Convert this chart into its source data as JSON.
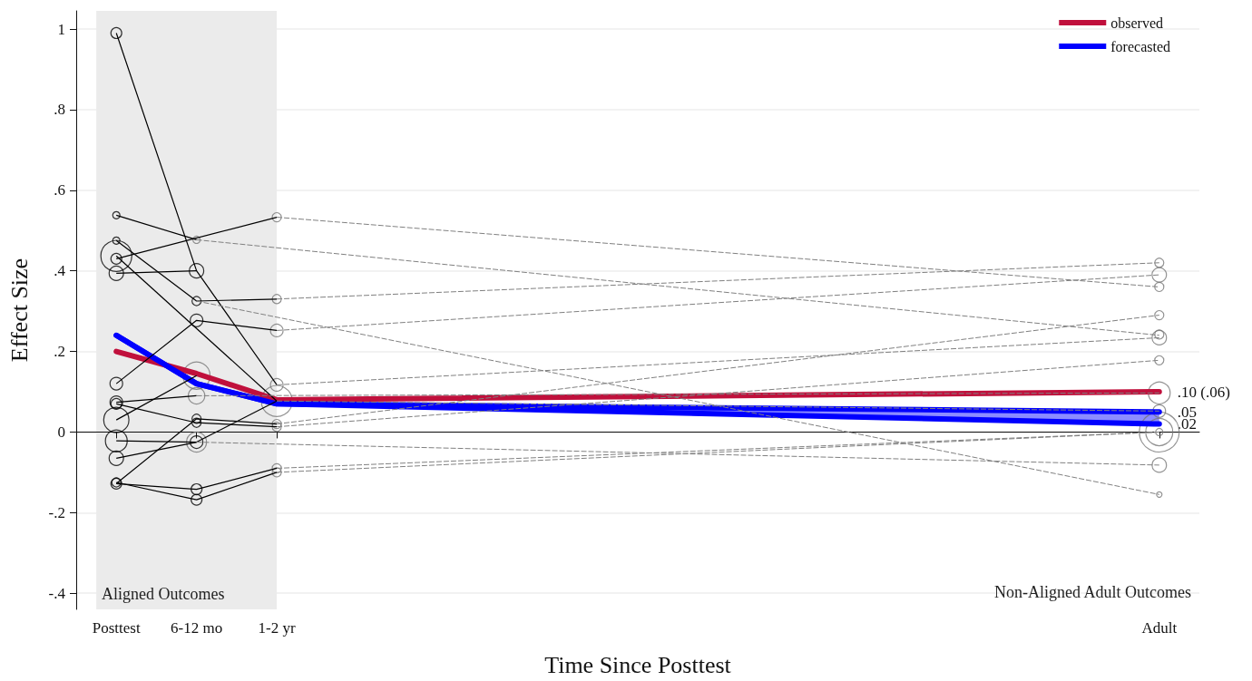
{
  "chart_data": {
    "type": "line",
    "xlabel": "Time Since Posttest",
    "ylabel": "Effect Size",
    "categories": [
      "Posttest",
      "6-12 mo",
      "1-2 yr",
      null,
      null,
      null,
      null,
      null,
      null,
      null,
      null,
      null,
      null,
      "Adult"
    ],
    "ylim": [
      -0.44,
      1.045
    ],
    "yticks": [
      {
        "value": -0.4,
        "label": "-.4"
      },
      {
        "value": -0.2,
        "label": "-.2"
      },
      {
        "value": 0,
        "label": "0"
      },
      {
        "value": 0.2,
        "label": ".2"
      },
      {
        "value": 0.4,
        "label": ".4"
      },
      {
        "value": 0.6,
        "label": ".6"
      },
      {
        "value": 0.8,
        "label": ".8"
      },
      {
        "value": 1,
        "label": "1"
      }
    ],
    "grid": "y",
    "legend": "top right",
    "bands": [
      {
        "axis": "x",
        "from": "Posttest",
        "to": "1-2 yr",
        "label": "Aligned Outcomes",
        "color": "#ebebeb"
      }
    ],
    "annotations": [
      "Non-Aligned Adult Outcomes",
      {
        "text": ".10 (.06)",
        "x": "Adult",
        "y": 0.1
      },
      {
        "text": ".05",
        "x": "Adult",
        "y": 0.05
      },
      {
        "text": ".02",
        "x": "Adult",
        "y": 0.02
      }
    ],
    "series": [
      {
        "color": "#000000",
        "line_style": "solid",
        "x": [
          "Posttest",
          "6-12 mo",
          "1-2 yr"
        ],
        "values": [
          0.99,
          0.4,
          0.117
        ]
      },
      {
        "color": "#000000",
        "line_style": "solid",
        "x": [
          "Posttest",
          "6-12 mo"
        ],
        "values": [
          0.394,
          0.4
        ]
      },
      {
        "color": "#000000",
        "line_style": "solid",
        "x": [
          "Posttest",
          "6-12 mo"
        ],
        "values": [
          0.538,
          0.477
        ]
      },
      {
        "color": "#000000",
        "line_style": "solid",
        "x": [
          "Posttest",
          "1-2 yr"
        ],
        "values": [
          0.43,
          0.533
        ]
      },
      {
        "color": "#000000",
        "line_style": "solid",
        "x": [
          "Posttest",
          "6-12 mo",
          "1-2 yr"
        ],
        "values": [
          0.475,
          0.325,
          0.33
        ]
      },
      {
        "color": "#000000",
        "line_style": "solid",
        "x": [
          "Posttest",
          "1-2 yr"
        ],
        "values": [
          0.437,
          0.077
        ]
      },
      {
        "color": "#000000",
        "line_style": "solid",
        "x": [
          "Posttest",
          "6-12 mo",
          "1-2 yr"
        ],
        "values": [
          0.12,
          0.277,
          0.252
        ]
      },
      {
        "color": "#000000",
        "line_style": "solid",
        "x": [
          "Posttest",
          "6-12 mo"
        ],
        "values": [
          0.074,
          0.09
        ]
      },
      {
        "color": "#000000",
        "line_style": "solid",
        "x": [
          "Posttest",
          "6-12 mo",
          "1-2 yr"
        ],
        "values": [
          0.07,
          0.023,
          0.013
        ]
      },
      {
        "color": "#000000",
        "line_style": "solid",
        "x": [
          "Posttest",
          "6-12 mo"
        ],
        "values": [
          0.03,
          0.14
        ]
      },
      {
        "color": "#000000",
        "line_style": "solid",
        "x": [
          "Posttest",
          "6-12 mo"
        ],
        "values": [
          -0.022,
          -0.025
        ]
      },
      {
        "color": "#000000",
        "line_style": "solid",
        "x": [
          "Posttest",
          "6-12 mo",
          "1-2 yr"
        ],
        "values": [
          -0.065,
          -0.025,
          0.077
        ]
      },
      {
        "color": "#000000",
        "line_style": "solid",
        "x": [
          "Posttest",
          "6-12 mo",
          "1-2 yr"
        ],
        "values": [
          -0.128,
          0.033,
          0.02
        ]
      },
      {
        "color": "#000000",
        "line_style": "solid",
        "x": [
          "Posttest",
          "6-12 mo",
          "1-2 yr"
        ],
        "values": [
          -0.128,
          -0.142,
          -0.09
        ]
      },
      {
        "color": "#000000",
        "line_style": "solid",
        "x": [
          "Posttest",
          "6-12 mo",
          "1-2 yr"
        ],
        "values": [
          -0.125,
          -0.168,
          -0.1
        ]
      },
      {
        "color": "#808080",
        "line_style": "dashed",
        "x": [
          "1-2 yr",
          "Adult"
        ],
        "values": [
          0.533,
          0.36
        ]
      },
      {
        "color": "#808080",
        "line_style": "dashed",
        "x": [
          "1-2 yr",
          "Adult"
        ],
        "values": [
          0.33,
          0.42
        ]
      },
      {
        "color": "#808080",
        "line_style": "dashed",
        "x": [
          "1-2 yr",
          "Adult"
        ],
        "values": [
          0.252,
          0.39
        ]
      },
      {
        "color": "#808080",
        "line_style": "dashed",
        "x": [
          "6-12 mo",
          "Adult"
        ],
        "values": [
          0.477,
          0.24
        ]
      },
      {
        "color": "#808080",
        "line_style": "dashed",
        "x": [
          "6-12 mo",
          "Adult"
        ],
        "values": [
          0.325,
          -0.155
        ]
      },
      {
        "color": "#808080",
        "line_style": "dashed",
        "x": [
          "1-2 yr",
          "Adult"
        ],
        "values": [
          0.02,
          0.29
        ]
      },
      {
        "color": "#808080",
        "line_style": "dashed",
        "x": [
          "1-2 yr",
          "Adult"
        ],
        "values": [
          0.013,
          0.178
        ]
      },
      {
        "color": "#808080",
        "line_style": "dashed",
        "x": [
          "1-2 yr",
          "Adult"
        ],
        "values": [
          -0.09,
          0.0
        ]
      },
      {
        "color": "#808080",
        "line_style": "dashed",
        "x": [
          "1-2 yr",
          "Adult"
        ],
        "values": [
          -0.1,
          0.0
        ]
      },
      {
        "color": "#808080",
        "line_style": "dashed",
        "x": [
          "6-12 mo",
          "Adult"
        ],
        "values": [
          -0.025,
          -0.082
        ]
      },
      {
        "color": "#808080",
        "line_style": "dashed",
        "x": [
          "1-2 yr",
          "Adult"
        ],
        "values": [
          0.117,
          0.234
        ]
      },
      {
        "color": "#808080",
        "line_style": "dashed",
        "x": [
          "1-2 yr",
          "Adult"
        ],
        "values": [
          0.077,
          0.052
        ]
      },
      {
        "color": "#808080",
        "line_style": "dashed",
        "x": [
          "6-12 mo",
          "Adult"
        ],
        "values": [
          0.09,
          0.097
        ]
      },
      {
        "type": "bubble",
        "color": "#000000",
        "x": [
          "Posttest",
          "Posttest",
          "Posttest",
          "Posttest",
          "Posttest",
          "Posttest",
          "Posttest",
          "Posttest",
          "Posttest",
          "Posttest",
          "Posttest",
          "Posttest",
          "Posttest",
          "Posttest",
          "6-12 mo",
          "6-12 mo",
          "6-12 mo",
          "6-12 mo",
          "6-12 mo",
          "6-12 mo",
          "6-12 mo",
          "6-12 mo"
        ],
        "values": [
          0.99,
          0.538,
          0.475,
          0.437,
          0.43,
          0.394,
          0.12,
          0.074,
          0.07,
          0.03,
          -0.022,
          -0.065,
          -0.128,
          -0.125,
          0.4,
          0.325,
          0.277,
          0.033,
          0.023,
          -0.025,
          -0.142,
          -0.168
        ],
        "sizes": [
          0.074,
          0.033,
          0.033,
          0.6,
          0.074,
          0.13,
          0.1,
          0.1,
          0.074,
          0.4,
          0.3,
          0.13,
          0.074,
          0.052,
          0.13,
          0.052,
          0.1,
          0.052,
          0.052,
          0.1,
          0.074,
          0.074
        ]
      },
      {
        "type": "bubble",
        "color": "#777777",
        "x": [
          "6-12 mo",
          "6-12 mo",
          "6-12 mo",
          "6-12 mo",
          "1-2 yr",
          "1-2 yr",
          "1-2 yr",
          "1-2 yr",
          "1-2 yr",
          "1-2 yr",
          "1-2 yr",
          "1-2 yr",
          "1-2 yr",
          "Adult",
          "Adult",
          "Adult",
          "Adult",
          "Adult",
          "Adult",
          "Adult",
          "Adult",
          "Adult",
          "Adult",
          "Adult",
          "Adult",
          "Adult",
          "Adult"
        ],
        "values": [
          0.477,
          0.14,
          0.09,
          -0.025,
          0.533,
          0.33,
          0.252,
          0.117,
          0.077,
          0.02,
          0.013,
          -0.09,
          -0.1,
          0.42,
          0.39,
          0.36,
          0.29,
          0.242,
          0.234,
          0.178,
          0.097,
          0.052,
          0.0,
          0.0,
          0.0,
          -0.082,
          -0.155
        ],
        "sizes": [
          0.033,
          0.46,
          0.17,
          0.25,
          0.052,
          0.052,
          0.1,
          0.1,
          0.6,
          0.052,
          0.052,
          0.052,
          0.052,
          0.052,
          0.13,
          0.052,
          0.052,
          0.052,
          0.13,
          0.052,
          0.3,
          0.1,
          1,
          0.46,
          0.033,
          0.13,
          0.019
        ]
      },
      {
        "name": "observed",
        "color": "#c0103c",
        "line_style": "solid",
        "x": [
          "Posttest",
          "6-12 mo",
          "1-2 yr",
          "Adult"
        ],
        "values": [
          0.2,
          0.145,
          0.08,
          0.1
        ]
      },
      {
        "name": "forecasted",
        "color": "#0000ff",
        "line_style": "solid",
        "x": [
          "Posttest",
          "6-12 mo",
          "1-2 yr",
          "Adult"
        ],
        "values": [
          0.24,
          0.12,
          0.07,
          0.05
        ],
        "lower": [
          0.24,
          0.12,
          0.07,
          0.02
        ],
        "upper": [
          0.24,
          0.12,
          0.07,
          0.05
        ]
      }
    ]
  }
}
